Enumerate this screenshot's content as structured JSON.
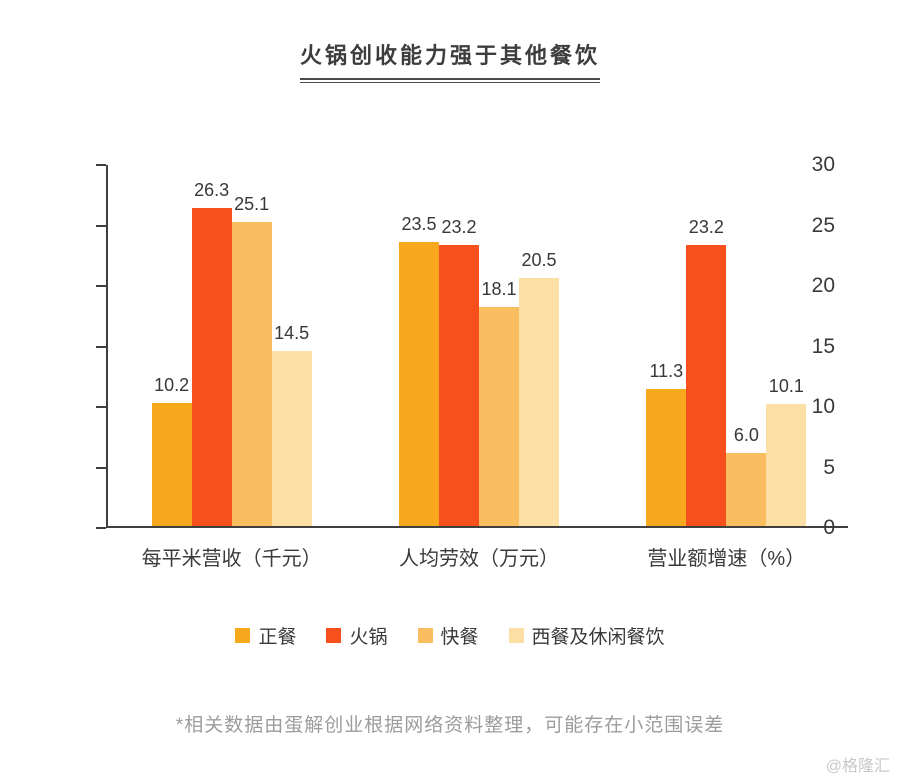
{
  "title": "火锅创收能力强于其他餐饮",
  "chart_data": {
    "type": "bar",
    "categories": [
      "每平米营收（千元）",
      "人均劳效（万元）",
      "营业额增速（%）"
    ],
    "series": [
      {
        "name": "正餐",
        "color": "#F7A81D",
        "values": [
          10.2,
          23.5,
          11.3
        ]
      },
      {
        "name": "火锅",
        "color": "#F8501C",
        "values": [
          26.3,
          23.2,
          23.2
        ]
      },
      {
        "name": "快餐",
        "color": "#FABD60",
        "values": [
          25.1,
          18.1,
          6.0
        ]
      },
      {
        "name": "西餐及休闲餐饮",
        "color": "#FBDFA5",
        "values": [
          14.5,
          20.5,
          10.1
        ]
      }
    ],
    "ylim": [
      0,
      30
    ],
    "yticks": [
      0,
      5,
      10,
      15,
      20,
      25,
      30
    ],
    "grid": false,
    "legend_position": "bottom",
    "value_labels": true,
    "value_decimals": 1
  },
  "colors": {
    "axis": "#3F3F3F",
    "text": "#3A3A3A",
    "footnote": "#9C9C9C",
    "watermark": "#C8C8C8"
  },
  "footnote": "*相关数据由蛋解创业根据网络资料整理，可能存在小范围误差",
  "watermark": "@格隆汇"
}
